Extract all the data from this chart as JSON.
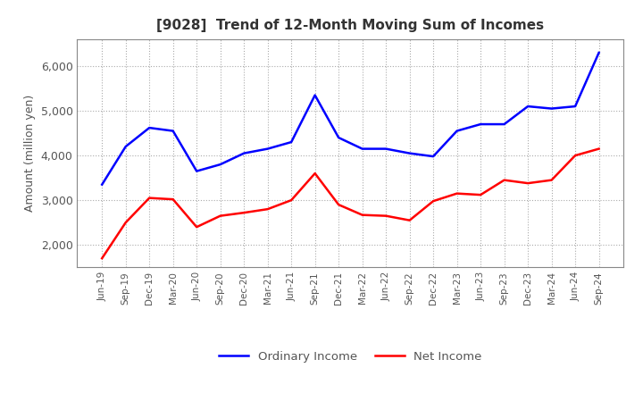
{
  "title": "[9028]  Trend of 12-Month Moving Sum of Incomes",
  "ylabel": "Amount (million yen)",
  "background_color": "#ffffff",
  "plot_bg_color": "#ffffff",
  "grid_color": "#aaaaaa",
  "x_labels": [
    "Jun-19",
    "Sep-19",
    "Dec-19",
    "Mar-20",
    "Jun-20",
    "Sep-20",
    "Dec-20",
    "Mar-21",
    "Jun-21",
    "Sep-21",
    "Dec-21",
    "Mar-22",
    "Jun-22",
    "Sep-22",
    "Dec-22",
    "Mar-23",
    "Jun-23",
    "Sep-23",
    "Dec-23",
    "Mar-24",
    "Jun-24",
    "Sep-24"
  ],
  "ordinary_income": [
    3350,
    4200,
    4620,
    4550,
    3650,
    3800,
    4050,
    4150,
    4300,
    5350,
    4400,
    4150,
    4150,
    4050,
    3980,
    4550,
    4700,
    4700,
    5100,
    5050,
    5100,
    6300
  ],
  "net_income": [
    1700,
    2500,
    3050,
    3020,
    2400,
    2650,
    2720,
    2800,
    3000,
    3600,
    2900,
    2670,
    2650,
    2550,
    2980,
    3150,
    3120,
    3450,
    3380,
    3450,
    4000,
    4150
  ],
  "ordinary_color": "#0000ff",
  "net_color": "#ff0000",
  "ylim_min": 1500,
  "ylim_max": 6600,
  "yticks": [
    2000,
    3000,
    4000,
    5000,
    6000
  ],
  "line_width": 1.8,
  "title_fontsize": 11,
  "title_color": "#333333",
  "tick_label_color": "#555555",
  "legend_labels": [
    "Ordinary Income",
    "Net Income"
  ]
}
